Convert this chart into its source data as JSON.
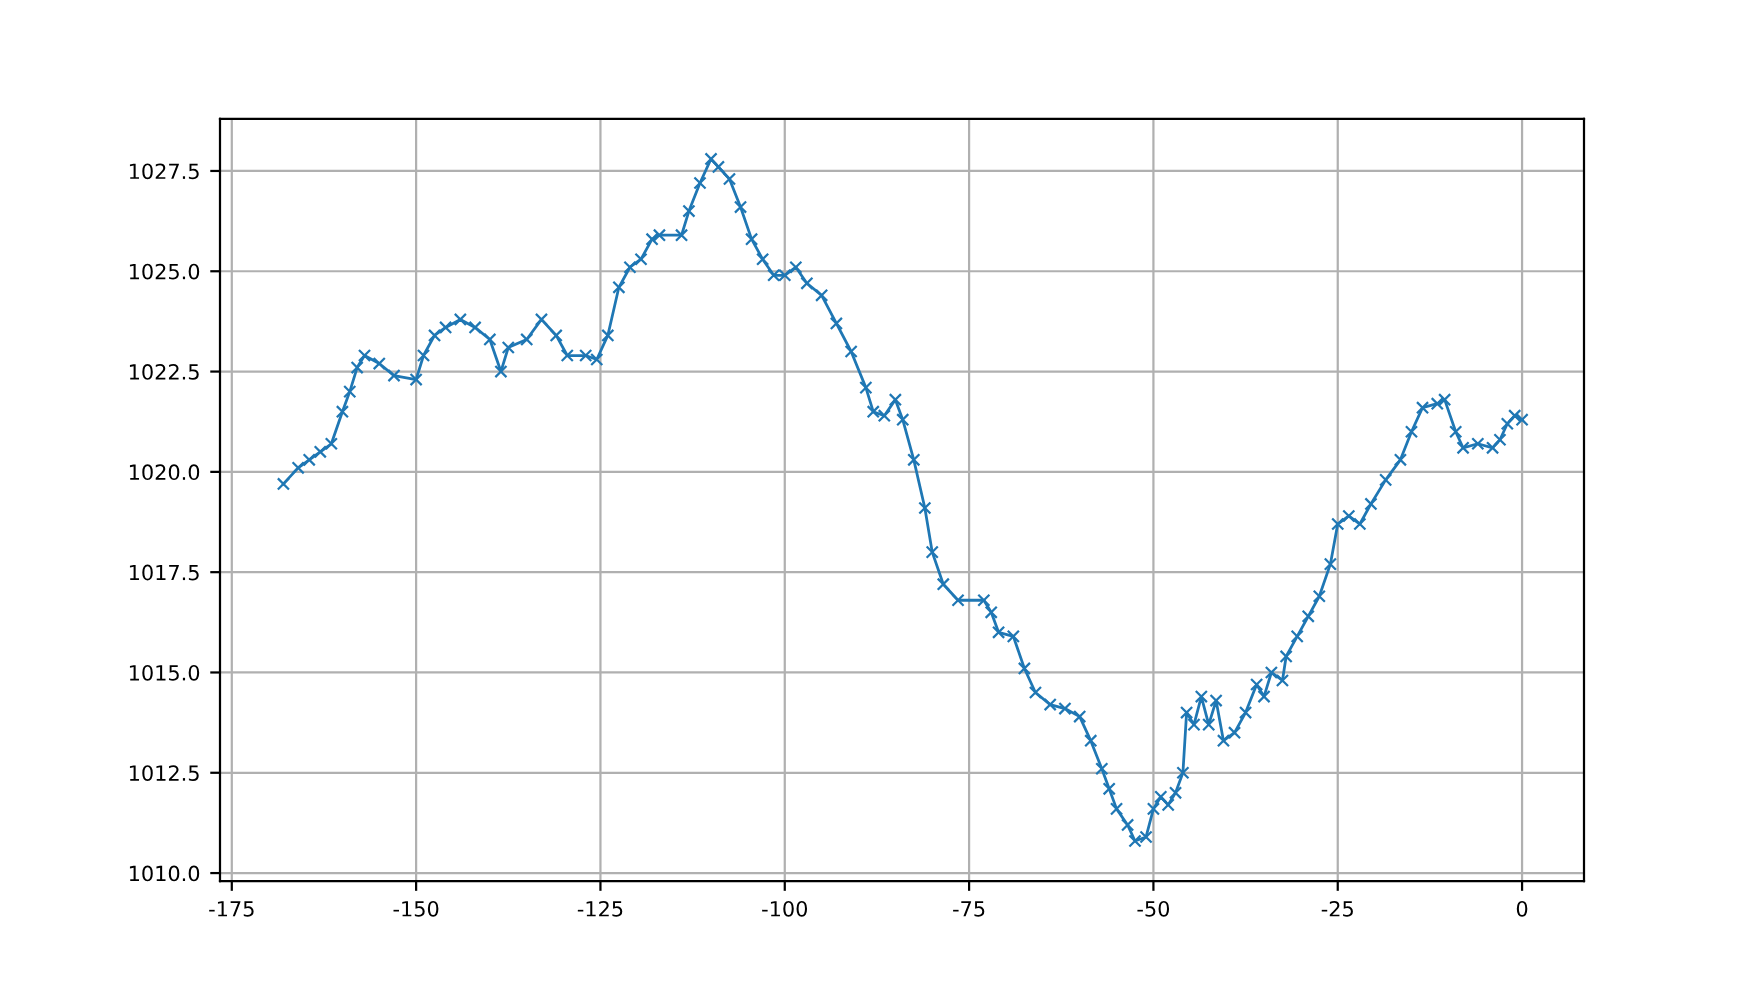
{
  "chart_data": {
    "type": "line",
    "marker": "cross",
    "grid": true,
    "xlim": [
      -176.6,
      8.4
    ],
    "ylim": [
      1009.8,
      1028.8
    ],
    "xticks": [
      -175,
      -150,
      -125,
      -100,
      -75,
      -50,
      -25,
      0
    ],
    "yticks": [
      {
        "value": 1010,
        "label": "1010.0"
      },
      1012.5,
      {
        "value": 1015,
        "label": "1015.0"
      },
      1017.5,
      {
        "value": 1020,
        "label": "1020.0"
      },
      1022.5,
      {
        "value": 1025,
        "label": "1025.0"
      },
      1027.5
    ],
    "series": [
      {
        "color": "#1f77b4",
        "x": [
          -168,
          -166,
          -164.5,
          -163,
          -161.5,
          -160,
          -159,
          -158,
          -157,
          -155,
          -153,
          -150,
          -149,
          -147.5,
          -146,
          -144,
          -142,
          -140,
          -138.5,
          -137.5,
          -135,
          -133,
          -131,
          -129.5,
          -127,
          -125.5,
          -124,
          -122.5,
          -121,
          -119.5,
          -118,
          -117,
          -114,
          -113,
          -111.5,
          -110,
          -109,
          -107.5,
          -106,
          -104.5,
          -103,
          -101.5,
          -100,
          -98.5,
          -97,
          -95,
          -93,
          -91,
          -89,
          -88,
          -86.5,
          -85,
          -84,
          -82.5,
          -81,
          -80,
          -78.5,
          -76.5,
          -73,
          -72,
          -71,
          -69,
          -67.5,
          -66,
          -64,
          -62,
          -60,
          -58.5,
          -57,
          -56,
          -55,
          -53.5,
          -52.5,
          -51,
          -50,
          -49,
          -48,
          -47,
          -46,
          -45.5,
          -44.5,
          -43.5,
          -42.5,
          -41.5,
          -40.5,
          -39,
          -37.5,
          -36,
          -35,
          -34,
          -32.5,
          -32,
          -30.5,
          -29,
          -27.5,
          -26,
          -25,
          -23.5,
          -22,
          -20.5,
          -18.5,
          -16.5,
          -15,
          -13.5,
          -11.5,
          -10.5,
          -9,
          -8,
          -6,
          -4,
          -3,
          -2,
          -1,
          0
        ],
        "values": [
          1019.7,
          1020.1,
          1020.3,
          1020.5,
          1020.7,
          1021.5,
          1022.0,
          1022.6,
          1022.9,
          1022.7,
          1022.4,
          1022.3,
          1022.9,
          1023.4,
          1023.6,
          1023.8,
          1023.6,
          1023.3,
          1022.5,
          1023.1,
          1023.3,
          1023.8,
          1023.4,
          1022.9,
          1022.9,
          1022.8,
          1023.4,
          1024.6,
          1025.1,
          1025.3,
          1025.8,
          1025.9,
          1025.9,
          1026.5,
          1027.2,
          1027.8,
          1027.6,
          1027.3,
          1026.6,
          1025.8,
          1025.3,
          1024.9,
          1024.9,
          1025.1,
          1024.7,
          1024.4,
          1023.7,
          1023.0,
          1022.1,
          1021.5,
          1021.4,
          1021.8,
          1021.3,
          1020.3,
          1019.1,
          1018.0,
          1017.2,
          1016.8,
          1016.8,
          1016.5,
          1016.0,
          1015.9,
          1015.1,
          1014.5,
          1014.2,
          1014.1,
          1013.9,
          1013.3,
          1012.6,
          1012.1,
          1011.6,
          1011.2,
          1010.8,
          1010.9,
          1011.6,
          1011.9,
          1011.7,
          1012.0,
          1012.5,
          1014.0,
          1013.7,
          1014.4,
          1013.7,
          1014.3,
          1013.3,
          1013.5,
          1014.0,
          1014.7,
          1014.4,
          1015.0,
          1014.8,
          1015.4,
          1015.9,
          1016.4,
          1016.9,
          1017.7,
          1018.7,
          1018.9,
          1018.7,
          1019.2,
          1019.8,
          1020.3,
          1021.0,
          1021.6,
          1021.7,
          1021.8,
          1021.0,
          1020.6,
          1020.7,
          1020.6,
          1020.8,
          1021.2,
          1021.4,
          1021.3
        ]
      }
    ]
  }
}
